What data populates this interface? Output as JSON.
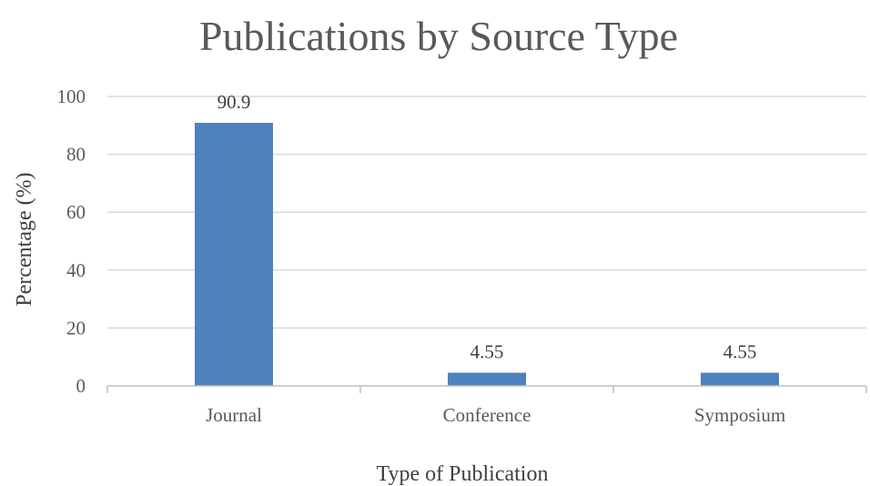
{
  "chart_data": {
    "type": "bar",
    "title": "Publications by Source Type",
    "xlabel": "Type of Publication",
    "ylabel": "Percentage (%)",
    "categories": [
      "Journal",
      "Conference",
      "Symposium"
    ],
    "values": [
      90.9,
      4.55,
      4.55
    ],
    "data_labels": [
      "90.9",
      "4.55",
      "4.55"
    ],
    "ylim": [
      0,
      100
    ],
    "yticks": [
      0,
      20,
      40,
      60,
      80,
      100
    ],
    "grid": true,
    "legend": "none",
    "bar_color": "#4f81bd"
  }
}
